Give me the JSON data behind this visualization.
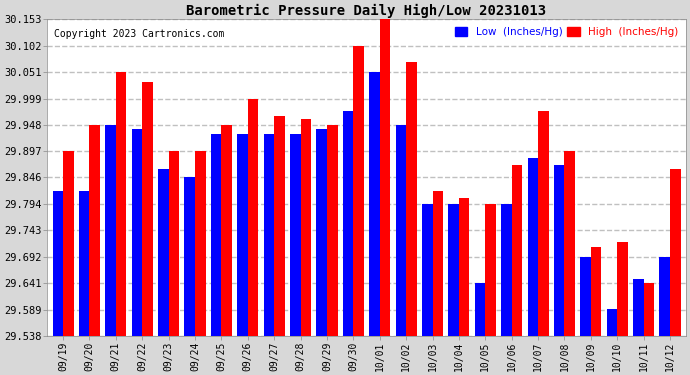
{
  "title": "Barometric Pressure Daily High/Low 20231013",
  "copyright": "Copyright 2023 Cartronics.com",
  "legend_low": "Low  (Inches/Hg)",
  "legend_high": "High  (Inches/Hg)",
  "dates": [
    "09/19",
    "09/20",
    "09/21",
    "09/22",
    "09/23",
    "09/24",
    "09/25",
    "09/26",
    "09/27",
    "09/28",
    "09/29",
    "09/30",
    "10/01",
    "10/02",
    "10/03",
    "10/04",
    "10/05",
    "10/06",
    "10/07",
    "10/08",
    "10/09",
    "10/10",
    "10/11",
    "10/12"
  ],
  "high_values": [
    29.897,
    29.948,
    30.051,
    30.031,
    29.897,
    29.897,
    29.948,
    29.999,
    29.965,
    29.96,
    29.948,
    30.102,
    30.153,
    30.071,
    29.82,
    29.806,
    29.795,
    29.87,
    29.975,
    29.897,
    29.71,
    29.72,
    29.641,
    29.862
  ],
  "low_values": [
    29.82,
    29.82,
    29.948,
    29.94,
    29.862,
    29.846,
    29.93,
    29.93,
    29.93,
    29.93,
    29.94,
    29.975,
    30.051,
    29.948,
    29.795,
    29.795,
    29.641,
    29.795,
    29.883,
    29.87,
    29.692,
    29.59,
    29.648,
    29.692
  ],
  "ylim_min": 29.538,
  "ylim_max": 30.153,
  "yticks": [
    29.538,
    29.589,
    29.641,
    29.692,
    29.743,
    29.794,
    29.846,
    29.897,
    29.948,
    29.999,
    30.051,
    30.102,
    30.153
  ],
  "bg_color": "#d8d8d8",
  "plot_bg_color": "#ffffff",
  "bar_high_color": "#ff0000",
  "bar_low_color": "#0000ff",
  "title_color": "#000000",
  "copyright_color": "#000000",
  "grid_color": "#c0c0c0",
  "bar_width": 0.4,
  "figwidth": 6.9,
  "figheight": 3.75,
  "dpi": 100
}
